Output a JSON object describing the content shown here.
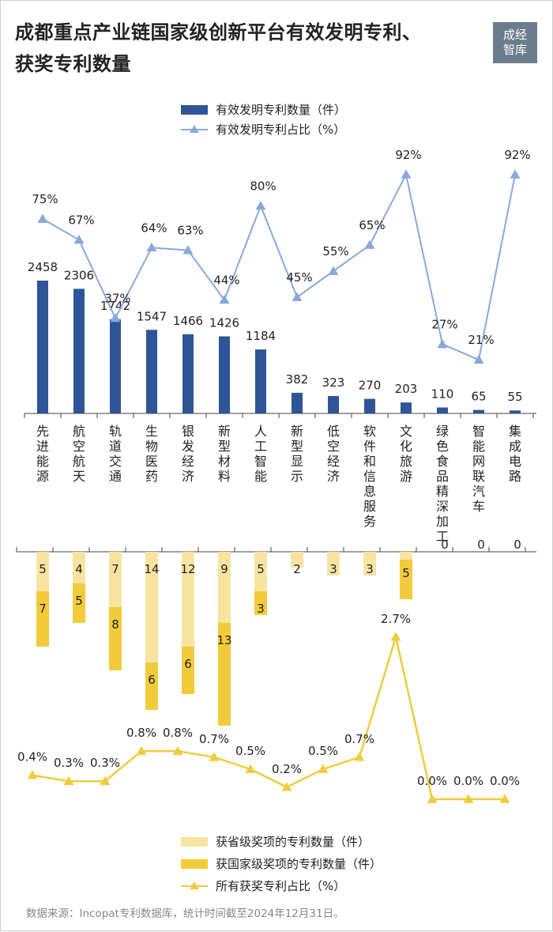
{
  "title_line1": "成都重点产业链国家级创新平台有效发明专利、",
  "title_line2": "获奖专利数量",
  "logo_text": "成经智库",
  "source": "数据来源：Incopat专利数据库，统计时间截至2024年12月31日。",
  "colors": {
    "bar_blue": "#2e5597",
    "line_blue": "#88a9dc",
    "light_yellow": "#f8e4a1",
    "dark_yellow": "#f2cb3a",
    "line_yellow": "#f0cc3c"
  },
  "chart_data": [
    {
      "type": "bar",
      "categories": [
        "先进能源",
        "航空航天",
        "轨道交通",
        "生物医药",
        "银发经济",
        "新型材料",
        "人工智能",
        "新型显示",
        "低空经济",
        "软件和信息服务",
        "文化旅游",
        "绿色食品精深加工",
        "智能网联汽车",
        "集成电路"
      ],
      "series": [
        {
          "name": "有效发明专利数量（件）",
          "type": "bar",
          "values": [
            2458,
            2306,
            1742,
            1547,
            1466,
            1426,
            1184,
            382,
            323,
            270,
            203,
            110,
            65,
            55
          ]
        },
        {
          "name": "有效发明专利占比（%）",
          "type": "line",
          "values": [
            75,
            67,
            37,
            64,
            63,
            44,
            80,
            45,
            55,
            65,
            92,
            27,
            21,
            92
          ],
          "labels": [
            "75%",
            "67%",
            "37%",
            "64%",
            "63%",
            "44%",
            "80%",
            "45%",
            "55%",
            "65%",
            "92%",
            "27%",
            "21%",
            "92%"
          ]
        }
      ],
      "legend_position": "top-center"
    },
    {
      "type": "bar",
      "stacked": true,
      "direction": "downward",
      "categories": [
        "先进能源",
        "航空航天",
        "轨道交通",
        "生物医药",
        "银发经济",
        "新型材料",
        "人工智能",
        "新型显示",
        "低空经济",
        "软件和信息服务",
        "文化旅游",
        "绿色食品精深加工",
        "智能网联汽车",
        "集成电路"
      ],
      "series": [
        {
          "name": "获省级奖项的专利数量（件）",
          "type": "bar",
          "values": [
            5,
            4,
            7,
            14,
            12,
            9,
            5,
            2,
            3,
            3,
            1,
            0,
            0,
            0
          ]
        },
        {
          "name": "获国家级奖项的专利数量（件）",
          "type": "bar",
          "values": [
            7,
            5,
            8,
            6,
            6,
            13,
            3,
            0,
            0,
            0,
            5,
            0,
            0,
            0
          ]
        },
        {
          "name": "所有获奖专利占比（%）",
          "type": "line",
          "values": [
            0.4,
            0.3,
            0.3,
            0.8,
            0.8,
            0.7,
            0.5,
            0.2,
            0.5,
            0.7,
            2.7,
            0.0,
            0.0,
            0.0
          ],
          "labels": [
            "0.4%",
            "0.3%",
            "0.3%",
            "0.8%",
            "0.8%",
            "0.7%",
            "0.5%",
            "0.2%",
            "0.5%",
            "0.7%",
            "2.7%",
            "0.0%",
            "0.0%",
            "0.0%"
          ]
        }
      ],
      "legend_position": "bottom-center"
    }
  ]
}
